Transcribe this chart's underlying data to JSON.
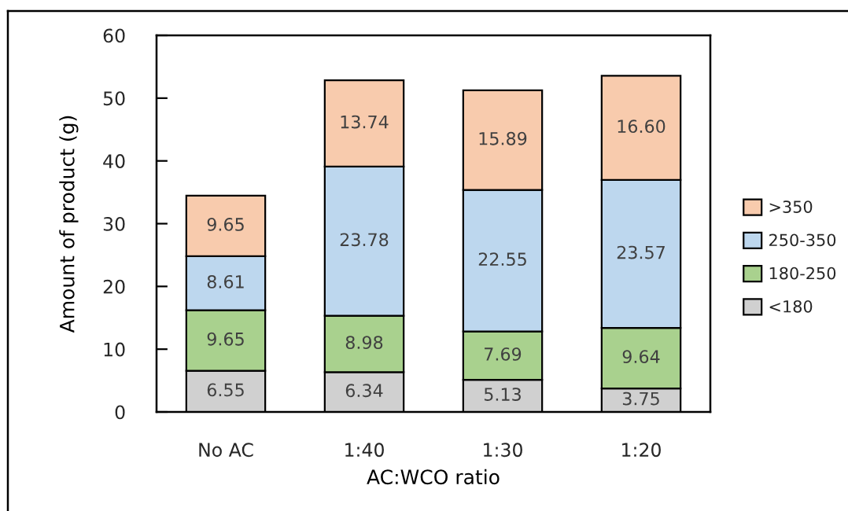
{
  "chart_data": {
    "type": "bar",
    "stacked": true,
    "xlabel": "AC:WCO ratio",
    "ylabel": "Amount of product (g)",
    "categories": [
      "No AC",
      "1:40",
      "1:30",
      "1:20"
    ],
    "series": [
      {
        "name": "<180",
        "color": "#d0d0d0",
        "values": [
          6.55,
          6.34,
          5.13,
          3.75
        ],
        "value_labels": [
          "6.55",
          "6.34",
          "5.13",
          "3.75"
        ]
      },
      {
        "name": "180-250",
        "color": "#a9d18e",
        "values": [
          9.65,
          8.98,
          7.69,
          9.64
        ],
        "value_labels": [
          "9.65",
          "8.98",
          "7.69",
          "9.64"
        ]
      },
      {
        "name": "250-350",
        "color": "#bdd7ee",
        "values": [
          8.61,
          23.78,
          22.55,
          23.57
        ],
        "value_labels": [
          "8.61",
          "23.78",
          "22.55",
          "23.57"
        ]
      },
      {
        "name": ">350",
        "color": "#f8cbad",
        "values": [
          9.65,
          13.74,
          15.89,
          16.6
        ],
        "value_labels": [
          "9.65",
          "13.74",
          "15.89",
          "16.60"
        ]
      }
    ],
    "ylim": [
      0,
      60
    ],
    "yticks": [
      0,
      10,
      20,
      30,
      40,
      50,
      60
    ],
    "legend": "right"
  }
}
